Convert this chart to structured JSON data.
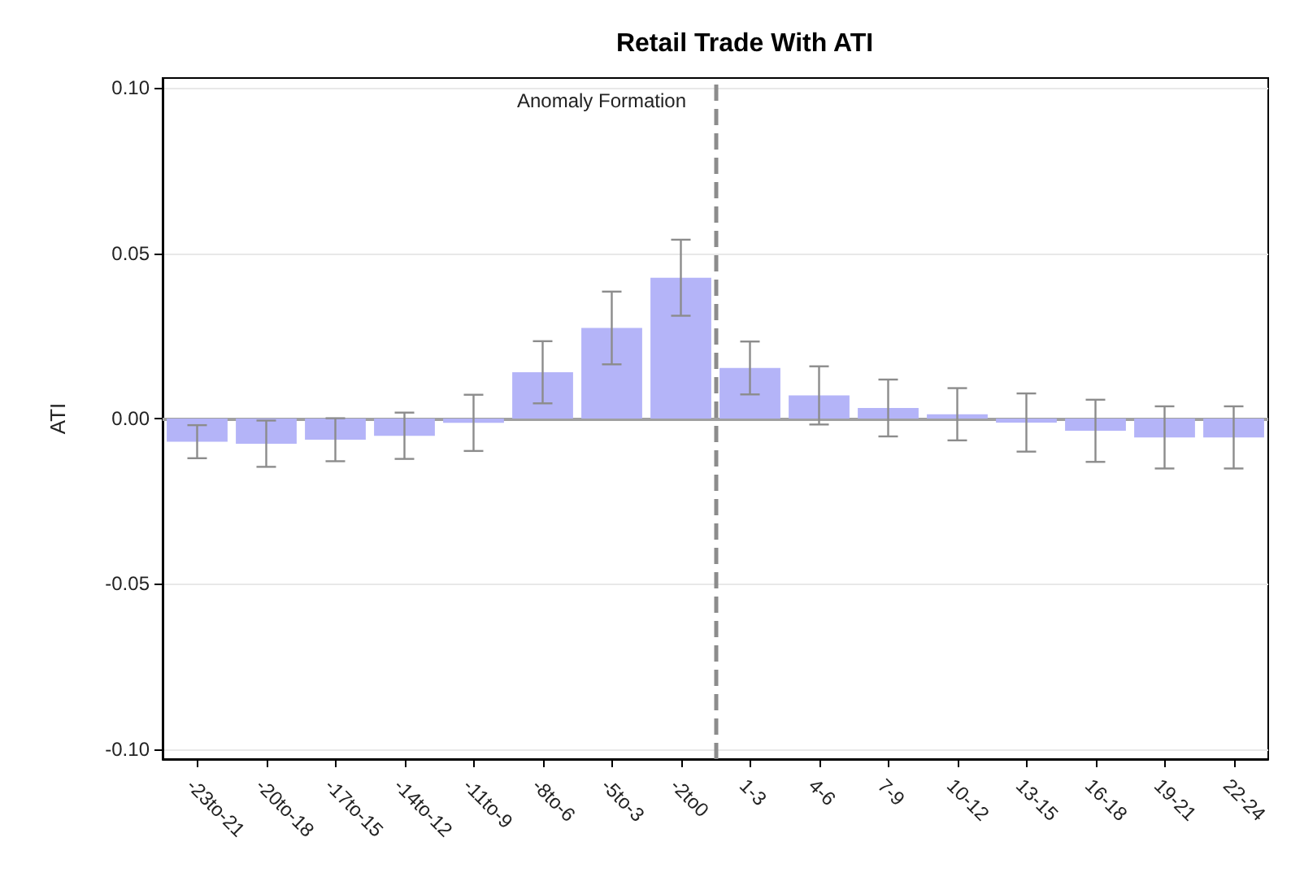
{
  "chart_data": {
    "type": "bar",
    "title": "Retail Trade With ATI",
    "ylabel": "ATI",
    "categories": [
      "-23to-21",
      "-20to-18",
      "-17to-15",
      "-14to-12",
      "-11to-9",
      "-8to-6",
      "-5to-3",
      "-2to0",
      "1-3",
      "4-6",
      "7-9",
      "10-12",
      "13-15",
      "16-18",
      "19-21",
      "22-24"
    ],
    "values": [
      -0.007,
      -0.0076,
      -0.0064,
      -0.0052,
      -0.0013,
      0.014,
      0.0274,
      0.0426,
      0.0153,
      0.007,
      0.0032,
      0.0013,
      -0.0012,
      -0.0037,
      -0.0057,
      -0.0057
    ],
    "errors": [
      0.005,
      0.007,
      0.0065,
      0.007,
      0.0085,
      0.0094,
      0.011,
      0.0115,
      0.008,
      0.0088,
      0.0086,
      0.0079,
      0.0088,
      0.0094,
      0.0094,
      0.0094
    ],
    "color": "#b4b4f8",
    "ylim": [
      -0.103,
      0.103
    ],
    "yticks": [
      {
        "value": -0.1,
        "label": "-0.10"
      },
      {
        "value": -0.05,
        "label": "-0.05"
      },
      {
        "value": 0,
        "label": "0.00"
      },
      {
        "value": 0.05,
        "label": "0.05"
      },
      {
        "value": 0.1,
        "label": "0.10"
      }
    ],
    "ref_lines": [
      {
        "axis": "x",
        "value": "1-3",
        "label": "Anomaly Formation",
        "color": "#8c8c8c",
        "line_style": "dashed"
      },
      {
        "axis": "y",
        "value": 0,
        "label": null,
        "color": "#a0a0a0",
        "line_style": "solid"
      }
    ],
    "grid": "y"
  }
}
